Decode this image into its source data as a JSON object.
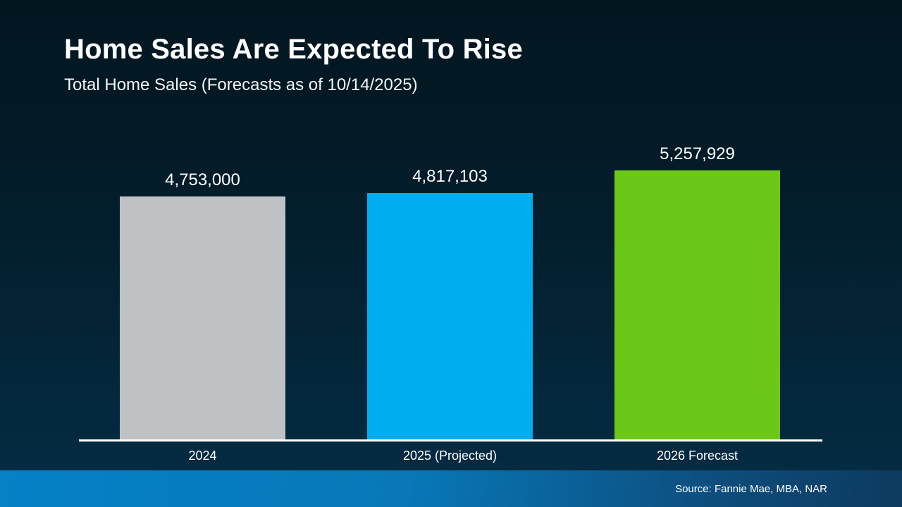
{
  "slide": {
    "title": "Home Sales Are Expected To Rise",
    "subtitle": "Total Home Sales (Forecasts as of 10/14/2025)",
    "source": "Source: Fannie Mae, MBA, NAR"
  },
  "chart_data": {
    "type": "bar",
    "title": "Home Sales Are Expected To Rise",
    "subtitle": "Total Home Sales (Forecasts as of 10/14/2025)",
    "categories": [
      "2024",
      "2025 (Projected)",
      "2026 Forecast"
    ],
    "values": [
      4753000,
      4817103,
      5257929
    ],
    "value_labels": [
      "4,753,000",
      "4,817,103",
      "5,257,929"
    ],
    "colors": [
      "#bfc2c4",
      "#00aeef",
      "#6bc818"
    ],
    "ylabel": "",
    "xlabel": "",
    "ylim": [
      0,
      5257929
    ],
    "grid": false,
    "legend": false,
    "baseline_axis_color": "#ffffff"
  }
}
